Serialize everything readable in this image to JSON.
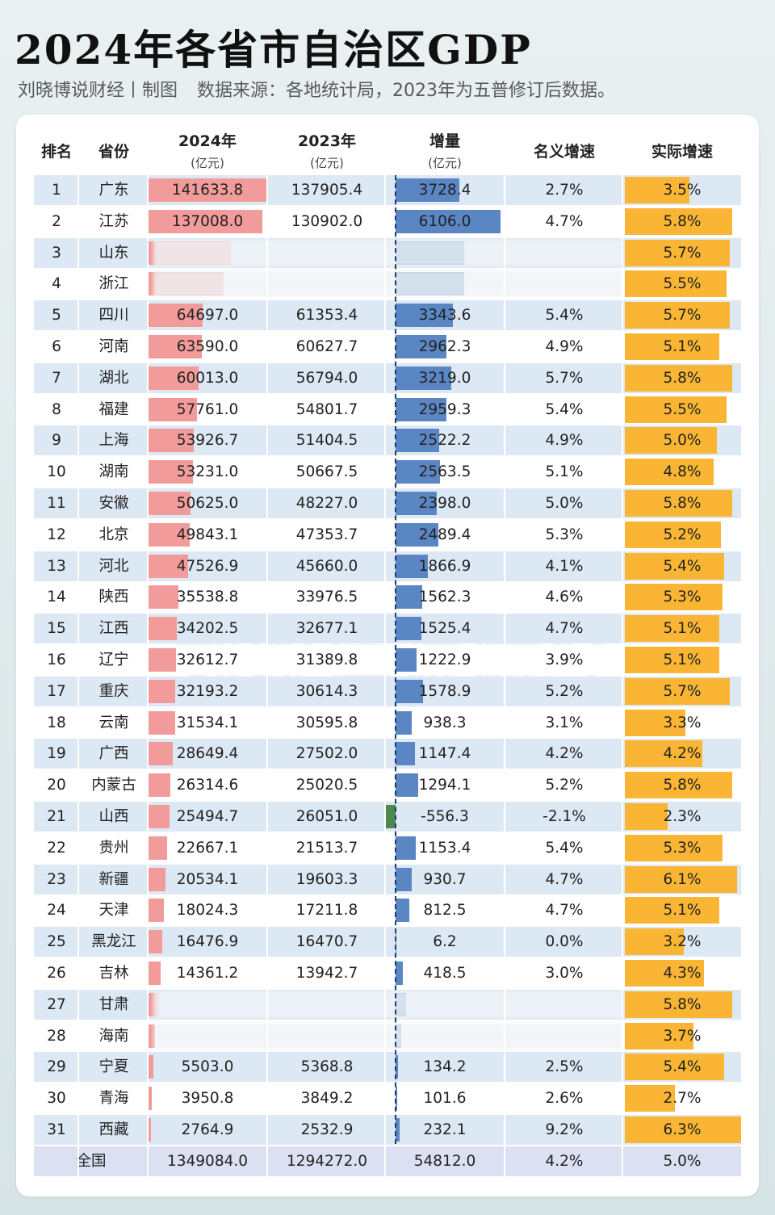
{
  "title": "2024年各省市自治区GDP",
  "subtitle": {
    "author": "刘晓博说财经丨制图",
    "source": "数据来源：各地统计局，2023年为五普修订后数据。"
  },
  "watermark": "刘晓博说财经",
  "colors": {
    "gdp2024_bar": "#f29b9b",
    "increase_bar": "#5b86c4",
    "negative_bar": "#4a8a4a",
    "real_growth_bar": "#f9b533",
    "row_stripe": "#dce8f4"
  },
  "headers": {
    "rank": "排名",
    "province": "省份",
    "gdp2024": "2024年",
    "gdp2024_unit": "(亿元)",
    "gdp2023": "2023年",
    "gdp2023_unit": "(亿元)",
    "increase": "增量",
    "increase_unit": "(亿元)",
    "nominal": "名义增速",
    "real": "实际增速"
  },
  "chart_data": {
    "type": "table",
    "title": "2024年各省市自治区GDP",
    "columns": [
      "排名",
      "省份",
      "2024年(亿元)",
      "2023年(亿元)",
      "增量(亿元)",
      "名义增速",
      "实际增速"
    ],
    "rows": [
      {
        "rank": "1",
        "province": "广东",
        "gdp2024": "141633.8",
        "gdp2023": "137905.4",
        "increase": "3728.4",
        "nominal": "2.7%",
        "real": "3.5%",
        "v24": 141633.8,
        "vinc": 3728.4,
        "vreal": 3.5
      },
      {
        "rank": "2",
        "province": "江苏",
        "gdp2024": "137008.0",
        "gdp2023": "130902.0",
        "increase": "6106.0",
        "nominal": "4.7%",
        "real": "5.8%",
        "v24": 137008.0,
        "vinc": 6106.0,
        "vreal": 5.8
      },
      {
        "rank": "3",
        "province": "山东",
        "gdp2024": "",
        "gdp2023": "",
        "increase": "",
        "nominal": "",
        "real": "5.7%",
        "v24": 98566,
        "vinc": 4000,
        "vreal": 5.7,
        "obscured": true
      },
      {
        "rank": "4",
        "province": "浙江",
        "gdp2024": "",
        "gdp2023": "",
        "increase": "",
        "nominal": "",
        "real": "5.5%",
        "v24": 90131,
        "vinc": 4000,
        "vreal": 5.5,
        "obscured": true
      },
      {
        "rank": "5",
        "province": "四川",
        "gdp2024": "64697.0",
        "gdp2023": "61353.4",
        "increase": "3343.6",
        "nominal": "5.4%",
        "real": "5.7%",
        "v24": 64697.0,
        "vinc": 3343.6,
        "vreal": 5.7
      },
      {
        "rank": "6",
        "province": "河南",
        "gdp2024": "63590.0",
        "gdp2023": "60627.7",
        "increase": "2962.3",
        "nominal": "4.9%",
        "real": "5.1%",
        "v24": 63590.0,
        "vinc": 2962.3,
        "vreal": 5.1
      },
      {
        "rank": "7",
        "province": "湖北",
        "gdp2024": "60013.0",
        "gdp2023": "56794.0",
        "increase": "3219.0",
        "nominal": "5.7%",
        "real": "5.8%",
        "v24": 60013.0,
        "vinc": 3219.0,
        "vreal": 5.8
      },
      {
        "rank": "8",
        "province": "福建",
        "gdp2024": "57761.0",
        "gdp2023": "54801.7",
        "increase": "2959.3",
        "nominal": "5.4%",
        "real": "5.5%",
        "v24": 57761.0,
        "vinc": 2959.3,
        "vreal": 5.5
      },
      {
        "rank": "9",
        "province": "上海",
        "gdp2024": "53926.7",
        "gdp2023": "51404.5",
        "increase": "2522.2",
        "nominal": "4.9%",
        "real": "5.0%",
        "v24": 53926.7,
        "vinc": 2522.2,
        "vreal": 5.0
      },
      {
        "rank": "10",
        "province": "湖南",
        "gdp2024": "53231.0",
        "gdp2023": "50667.5",
        "increase": "2563.5",
        "nominal": "5.1%",
        "real": "4.8%",
        "v24": 53231.0,
        "vinc": 2563.5,
        "vreal": 4.8
      },
      {
        "rank": "11",
        "province": "安徽",
        "gdp2024": "50625.0",
        "gdp2023": "48227.0",
        "increase": "2398.0",
        "nominal": "5.0%",
        "real": "5.8%",
        "v24": 50625.0,
        "vinc": 2398.0,
        "vreal": 5.8
      },
      {
        "rank": "12",
        "province": "北京",
        "gdp2024": "49843.1",
        "gdp2023": "47353.7",
        "increase": "2489.4",
        "nominal": "5.3%",
        "real": "5.2%",
        "v24": 49843.1,
        "vinc": 2489.4,
        "vreal": 5.2
      },
      {
        "rank": "13",
        "province": "河北",
        "gdp2024": "47526.9",
        "gdp2023": "45660.0",
        "increase": "1866.9",
        "nominal": "4.1%",
        "real": "5.4%",
        "v24": 47526.9,
        "vinc": 1866.9,
        "vreal": 5.4
      },
      {
        "rank": "14",
        "province": "陕西",
        "gdp2024": "35538.8",
        "gdp2023": "33976.5",
        "increase": "1562.3",
        "nominal": "4.6%",
        "real": "5.3%",
        "v24": 35538.8,
        "vinc": 1562.3,
        "vreal": 5.3
      },
      {
        "rank": "15",
        "province": "江西",
        "gdp2024": "34202.5",
        "gdp2023": "32677.1",
        "increase": "1525.4",
        "nominal": "4.7%",
        "real": "5.1%",
        "v24": 34202.5,
        "vinc": 1525.4,
        "vreal": 5.1
      },
      {
        "rank": "16",
        "province": "辽宁",
        "gdp2024": "32612.7",
        "gdp2023": "31389.8",
        "increase": "1222.9",
        "nominal": "3.9%",
        "real": "5.1%",
        "v24": 32612.7,
        "vinc": 1222.9,
        "vreal": 5.1
      },
      {
        "rank": "17",
        "province": "重庆",
        "gdp2024": "32193.2",
        "gdp2023": "30614.3",
        "increase": "1578.9",
        "nominal": "5.2%",
        "real": "5.7%",
        "v24": 32193.2,
        "vinc": 1578.9,
        "vreal": 5.7
      },
      {
        "rank": "18",
        "province": "云南",
        "gdp2024": "31534.1",
        "gdp2023": "30595.8",
        "increase": "938.3",
        "nominal": "3.1%",
        "real": "3.3%",
        "v24": 31534.1,
        "vinc": 938.3,
        "vreal": 3.3
      },
      {
        "rank": "19",
        "province": "广西",
        "gdp2024": "28649.4",
        "gdp2023": "27502.0",
        "increase": "1147.4",
        "nominal": "4.2%",
        "real": "4.2%",
        "v24": 28649.4,
        "vinc": 1147.4,
        "vreal": 4.2
      },
      {
        "rank": "20",
        "province": "内蒙古",
        "gdp2024": "26314.6",
        "gdp2023": "25020.5",
        "increase": "1294.1",
        "nominal": "5.2%",
        "real": "5.8%",
        "v24": 26314.6,
        "vinc": 1294.1,
        "vreal": 5.8
      },
      {
        "rank": "21",
        "province": "山西",
        "gdp2024": "25494.7",
        "gdp2023": "26051.0",
        "increase": "-556.3",
        "nominal": "-2.1%",
        "real": "2.3%",
        "v24": 25494.7,
        "vinc": -556.3,
        "vreal": 2.3
      },
      {
        "rank": "22",
        "province": "贵州",
        "gdp2024": "22667.1",
        "gdp2023": "21513.7",
        "increase": "1153.4",
        "nominal": "5.4%",
        "real": "5.3%",
        "v24": 22667.1,
        "vinc": 1153.4,
        "vreal": 5.3
      },
      {
        "rank": "23",
        "province": "新疆",
        "gdp2024": "20534.1",
        "gdp2023": "19603.3",
        "increase": "930.7",
        "nominal": "4.7%",
        "real": "6.1%",
        "v24": 20534.1,
        "vinc": 930.7,
        "vreal": 6.1
      },
      {
        "rank": "24",
        "province": "天津",
        "gdp2024": "18024.3",
        "gdp2023": "17211.8",
        "increase": "812.5",
        "nominal": "4.7%",
        "real": "5.1%",
        "v24": 18024.3,
        "vinc": 812.5,
        "vreal": 5.1
      },
      {
        "rank": "25",
        "province": "黑龙江",
        "gdp2024": "16476.9",
        "gdp2023": "16470.7",
        "increase": "6.2",
        "nominal": "0.0%",
        "real": "3.2%",
        "v24": 16476.9,
        "vinc": 6.2,
        "vreal": 3.2
      },
      {
        "rank": "26",
        "province": "吉林",
        "gdp2024": "14361.2",
        "gdp2023": "13942.7",
        "increase": "418.5",
        "nominal": "3.0%",
        "real": "4.3%",
        "v24": 14361.2,
        "vinc": 418.5,
        "vreal": 4.3
      },
      {
        "rank": "27",
        "province": "甘肃",
        "gdp2024": "",
        "gdp2023": "",
        "increase": "",
        "nominal": "",
        "real": "5.8%",
        "v24": 13000,
        "vinc": 600,
        "vreal": 5.8,
        "obscured": true
      },
      {
        "rank": "28",
        "province": "海南",
        "gdp2024": "",
        "gdp2023": "",
        "increase": "",
        "nominal": "",
        "real": "3.7%",
        "v24": 7900,
        "vinc": 340,
        "vreal": 3.7,
        "obscured": true
      },
      {
        "rank": "29",
        "province": "宁夏",
        "gdp2024": "5503.0",
        "gdp2023": "5368.8",
        "increase": "134.2",
        "nominal": "2.5%",
        "real": "5.4%",
        "v24": 5503.0,
        "vinc": 134.2,
        "vreal": 5.4
      },
      {
        "rank": "30",
        "province": "青海",
        "gdp2024": "3950.8",
        "gdp2023": "3849.2",
        "increase": "101.6",
        "nominal": "2.6%",
        "real": "2.7%",
        "v24": 3950.8,
        "vinc": 101.6,
        "vreal": 2.7
      },
      {
        "rank": "31",
        "province": "西藏",
        "gdp2024": "2764.9",
        "gdp2023": "2532.9",
        "increase": "232.1",
        "nominal": "9.2%",
        "real": "6.3%",
        "v24": 2764.9,
        "vinc": 232.1,
        "vreal": 6.3
      }
    ],
    "total": {
      "label": "全国",
      "gdp2024": "1349084.0",
      "gdp2023": "1294272.0",
      "increase": "54812.0",
      "nominal": "4.2%",
      "real": "5.0%"
    }
  }
}
